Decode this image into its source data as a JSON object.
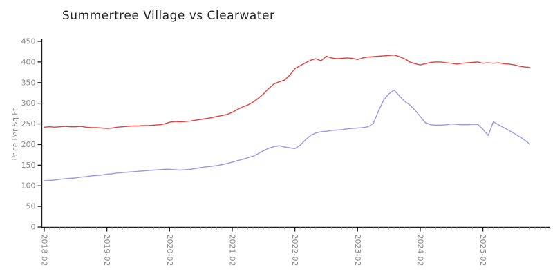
{
  "chart_data": {
    "type": "line",
    "title": "Summertree Village vs Clearwater",
    "xlabel": "",
    "ylabel": "Price Per Sq Ft",
    "style": "xkcd-handdrawn",
    "grid": false,
    "legend": "none",
    "ylim": [
      0,
      450
    ],
    "yticks": [
      0,
      50,
      100,
      150,
      200,
      250,
      300,
      350,
      400,
      450
    ],
    "x_unit": "month",
    "x_start": "2018-02",
    "x_end": "2025-11",
    "xtick_labels": [
      "2018-02",
      "2019-02",
      "2020-02",
      "2021-02",
      "2022-02",
      "2023-02",
      "2024-02",
      "2025-02"
    ],
    "xtick_month_indices": [
      0,
      12,
      24,
      36,
      48,
      60,
      72,
      84
    ],
    "minor_xtick_interval_months": 1,
    "axis_color": "#1a1a1a",
    "tick_label_color": "#8a8a8a",
    "series": [
      {
        "name": "Summertree Village",
        "color": "#e53e3e",
        "values": [
          242,
          243,
          242,
          243,
          244,
          243,
          243,
          244,
          242,
          241,
          241,
          240,
          239,
          240,
          242,
          243,
          244,
          245,
          245,
          246,
          246,
          247,
          248,
          250,
          254,
          256,
          255,
          256,
          257,
          259,
          261,
          263,
          265,
          268,
          270,
          273,
          278,
          285,
          291,
          296,
          303,
          312,
          323,
          336,
          347,
          352,
          356,
          368,
          384,
          391,
          398,
          404,
          408,
          403,
          414,
          410,
          408,
          409,
          410,
          409,
          406,
          410,
          412,
          413,
          414,
          415,
          416,
          417,
          413,
          408,
          400,
          396,
          393,
          396,
          399,
          400,
          400,
          398,
          397,
          395,
          397,
          398,
          399,
          400,
          397,
          398,
          397,
          398,
          396,
          395,
          393,
          390,
          388,
          387
        ]
      },
      {
        "name": "Clearwater",
        "color": "#9898e8",
        "values": [
          112,
          113,
          114,
          116,
          117,
          118,
          119,
          121,
          122,
          124,
          125,
          126,
          128,
          129,
          131,
          132,
          133,
          134,
          135,
          136,
          137,
          138,
          139,
          140,
          140,
          139,
          138,
          139,
          140,
          142,
          144,
          146,
          147,
          149,
          151,
          154,
          157,
          161,
          164,
          168,
          172,
          178,
          185,
          191,
          195,
          197,
          194,
          192,
          190,
          198,
          211,
          222,
          228,
          231,
          232,
          234,
          235,
          236,
          238,
          239,
          240,
          241,
          243,
          251,
          281,
          308,
          323,
          332,
          318,
          305,
          296,
          283,
          268,
          253,
          248,
          247,
          247,
          248,
          250,
          249,
          248,
          248,
          249,
          249,
          237,
          222,
          255,
          248,
          241,
          234,
          227,
          219,
          211,
          201
        ]
      }
    ]
  }
}
